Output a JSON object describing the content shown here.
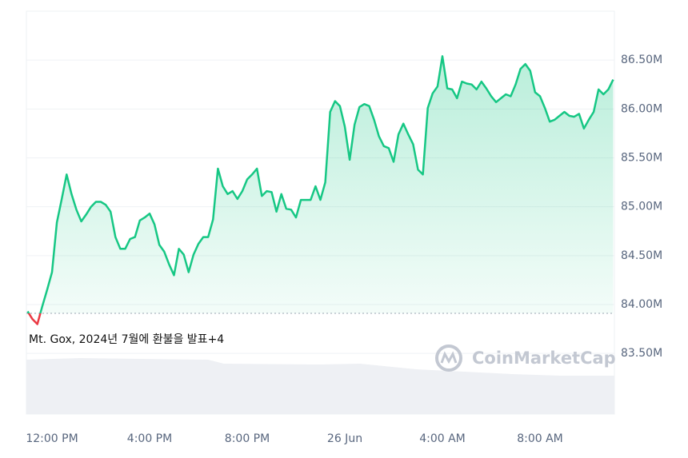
{
  "chart_data": {
    "type": "line",
    "annotation": "Mt. Gox, 2024년 7월에 환불을 발표+4",
    "watermark": "CoinMarketCap",
    "x": [
      -1,
      -0.8,
      -0.6,
      -0.4,
      -0.2,
      0,
      0.2,
      0.4,
      0.6,
      0.8,
      1,
      1.2,
      1.4,
      1.6,
      1.8,
      2,
      2.2,
      2.4,
      2.6,
      2.8,
      3,
      3.2,
      3.4,
      3.6,
      3.8,
      4,
      4.2,
      4.4,
      4.6,
      4.8,
      5,
      5.2,
      5.4,
      5.6,
      5.8,
      6,
      6.2,
      6.4,
      6.6,
      6.8,
      7,
      7.2,
      7.4,
      7.6,
      7.8,
      8,
      8.2,
      8.4,
      8.6,
      8.8,
      9,
      9.2,
      9.4,
      9.6,
      9.8,
      10,
      10.2,
      10.4,
      10.6,
      10.8,
      11,
      11.2,
      11.4,
      11.6,
      11.8,
      12,
      12.2,
      12.4,
      12.6,
      12.8,
      13,
      13.2,
      13.4,
      13.6,
      13.8,
      14,
      14.2,
      14.4,
      14.6,
      14.8,
      15,
      15.2,
      15.4,
      15.6,
      15.8,
      16,
      16.2,
      16.4,
      16.6,
      16.8,
      17,
      17.2,
      17.4,
      17.6,
      17.8,
      18,
      18.2,
      18.4,
      18.6,
      18.8,
      19,
      19.2,
      19.4,
      19.6,
      19.8,
      20,
      20.2,
      20.4,
      20.6,
      20.8,
      21,
      21.2,
      21.4,
      21.6,
      21.8,
      22,
      22.2,
      22.4,
      22.6,
      22.8,
      23
    ],
    "series": [
      {
        "color": "#16c784",
        "below_color": "#ea3943",
        "values": [
          83.93,
          83.85,
          83.8,
          83.98,
          84.15,
          84.33,
          84.84,
          85.08,
          85.33,
          85.13,
          84.97,
          84.85,
          84.92,
          85.0,
          85.05,
          85.05,
          85.02,
          84.95,
          84.69,
          84.57,
          84.57,
          84.67,
          84.69,
          84.86,
          84.89,
          84.93,
          84.82,
          84.61,
          84.54,
          84.41,
          84.3,
          84.57,
          84.51,
          84.33,
          84.51,
          84.62,
          84.69,
          84.69,
          84.87,
          85.39,
          85.21,
          85.13,
          85.16,
          85.08,
          85.16,
          85.28,
          85.33,
          85.39,
          85.11,
          85.16,
          85.15,
          84.95,
          85.13,
          84.98,
          84.97,
          84.89,
          85.07,
          85.07,
          85.07,
          85.21,
          85.07,
          85.25,
          85.97,
          86.08,
          86.03,
          85.82,
          85.48,
          85.84,
          86.02,
          86.05,
          86.03,
          85.89,
          85.72,
          85.62,
          85.6,
          85.46,
          85.74,
          85.85,
          85.74,
          85.64,
          85.38,
          85.33,
          86.01,
          86.16,
          86.23,
          86.54,
          86.21,
          86.2,
          86.11,
          86.28,
          86.26,
          86.25,
          86.2,
          86.28,
          86.21,
          86.13,
          86.07,
          86.11,
          86.15,
          86.13,
          86.25,
          86.41,
          86.46,
          86.39,
          86.17,
          86.13,
          86.01,
          85.87,
          85.89,
          85.93,
          85.97,
          85.93,
          85.92,
          85.95,
          85.8,
          85.89,
          85.97,
          86.2,
          86.15,
          86.2,
          86.3
        ]
      }
    ],
    "baseline": 83.91,
    "xlim": [
      -1.05,
      23.05
    ],
    "xticks": [
      {
        "value": 0,
        "label": "12:00 PM"
      },
      {
        "value": 4,
        "label": "4:00 PM"
      },
      {
        "value": 8,
        "label": "8:00 PM"
      },
      {
        "value": 12,
        "label": "26 Jun"
      },
      {
        "value": 16,
        "label": "4:00 AM"
      },
      {
        "value": 20,
        "label": "8:00 AM"
      }
    ],
    "ylim": [
      82.88,
      87.0
    ],
    "yticks": [
      {
        "value": 83.5,
        "label": "83.50M"
      },
      {
        "value": 84,
        "label": "84.00M"
      },
      {
        "value": 84.5,
        "label": "84.50M"
      },
      {
        "value": 85,
        "label": "85.00M"
      },
      {
        "value": 85.5,
        "label": "85.50M"
      },
      {
        "value": 86,
        "label": "86.00M"
      },
      {
        "value": 86.5,
        "label": "86.50M"
      }
    ],
    "grid": true
  }
}
